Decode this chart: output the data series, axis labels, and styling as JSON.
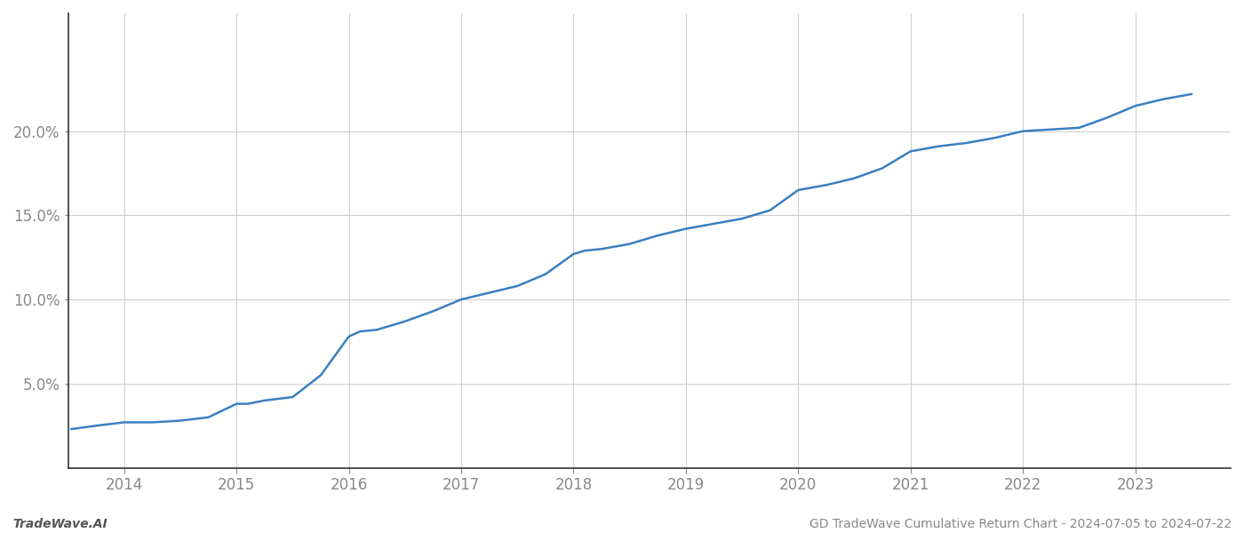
{
  "title": "GD TradeWave Cumulative Return Chart - 2024-07-05 to 2024-07-22",
  "watermark": "TradeWave.AI",
  "line_color": "#3a7fc1",
  "background_color": "#ffffff",
  "grid_color": "#cccccc",
  "x_years": [
    2014,
    2015,
    2016,
    2017,
    2018,
    2019,
    2020,
    2021,
    2022,
    2023
  ],
  "x_data": [
    2013.53,
    2013.75,
    2014.0,
    2014.25,
    2014.5,
    2014.75,
    2015.0,
    2015.1,
    2015.25,
    2015.5,
    2015.75,
    2016.0,
    2016.1,
    2016.25,
    2016.5,
    2016.75,
    2017.0,
    2017.25,
    2017.5,
    2017.75,
    2018.0,
    2018.1,
    2018.25,
    2018.5,
    2018.75,
    2019.0,
    2019.25,
    2019.5,
    2019.75,
    2020.0,
    2020.25,
    2020.5,
    2020.75,
    2021.0,
    2021.25,
    2021.5,
    2021.75,
    2022.0,
    2022.25,
    2022.5,
    2022.75,
    2023.0,
    2023.25,
    2023.5
  ],
  "y_data": [
    0.023,
    0.025,
    0.027,
    0.027,
    0.028,
    0.03,
    0.038,
    0.038,
    0.04,
    0.042,
    0.055,
    0.078,
    0.081,
    0.082,
    0.087,
    0.093,
    0.1,
    0.104,
    0.108,
    0.115,
    0.127,
    0.129,
    0.13,
    0.133,
    0.138,
    0.142,
    0.145,
    0.148,
    0.153,
    0.165,
    0.168,
    0.172,
    0.178,
    0.188,
    0.191,
    0.193,
    0.196,
    0.2,
    0.201,
    0.202,
    0.208,
    0.215,
    0.219,
    0.222
  ],
  "yticks": [
    0.05,
    0.1,
    0.15,
    0.2
  ],
  "ylim": [
    0.0,
    0.27
  ],
  "xlim": [
    2013.5,
    2023.85
  ],
  "tick_fontsize": 12,
  "footer_fontsize": 10,
  "line_width": 1.8,
  "spine_color": "#333333"
}
